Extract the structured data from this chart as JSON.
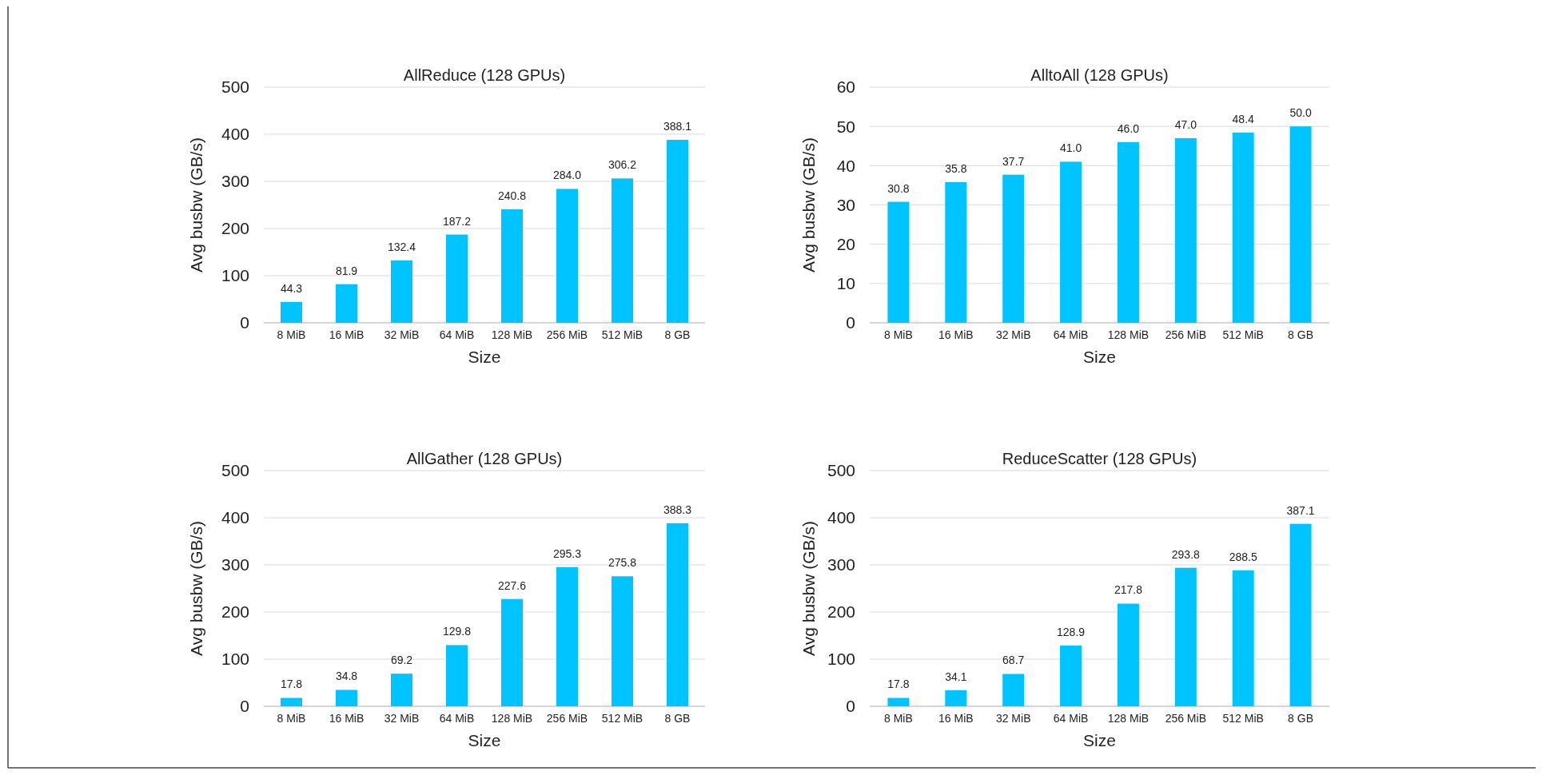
{
  "chart_data": [
    {
      "type": "bar",
      "title": "AllReduce (128 GPUs)",
      "xlabel": "Size",
      "ylabel": "Avg busbw (GB/s)",
      "categories": [
        "8 MiB",
        "16 MiB",
        "32 MiB",
        "64 MiB",
        "128 MiB",
        "256 MiB",
        "512 MiB",
        "8 GB"
      ],
      "values": [
        44.3,
        81.9,
        132.4,
        187.2,
        240.8,
        284.0,
        306.2,
        388.1
      ],
      "value_labels": [
        "44.3",
        "81.9",
        "132.4",
        "187.2",
        "240.8",
        "284.0",
        "306.2",
        "388.1"
      ],
      "color": "#00c4ff",
      "ylim": [
        0,
        500
      ],
      "yticks": [
        0,
        100,
        200,
        300,
        400,
        500
      ],
      "grid": "y"
    },
    {
      "type": "bar",
      "title": "AlltoAll (128 GPUs)",
      "xlabel": "Size",
      "ylabel": "Avg busbw (GB/s)",
      "categories": [
        "8 MiB",
        "16 MiB",
        "32 MiB",
        "64 MiB",
        "128 MiB",
        "256 MiB",
        "512 MiB",
        "8 GB"
      ],
      "values": [
        30.8,
        35.8,
        37.7,
        41.0,
        46.0,
        47.0,
        48.4,
        50.0
      ],
      "value_labels": [
        "30.8",
        "35.8",
        "37.7",
        "41.0",
        "46.0",
        "47.0",
        "48.4",
        "50.0"
      ],
      "color": "#00c4ff",
      "ylim": [
        0,
        60
      ],
      "yticks": [
        0,
        10,
        20,
        30,
        40,
        50,
        60
      ],
      "grid": "y"
    },
    {
      "type": "bar",
      "title": "AllGather (128 GPUs)",
      "xlabel": "Size",
      "ylabel": "Avg busbw (GB/s)",
      "categories": [
        "8 MiB",
        "16 MiB",
        "32 MiB",
        "64 MiB",
        "128 MiB",
        "256 MiB",
        "512 MiB",
        "8 GB"
      ],
      "values": [
        17.8,
        34.8,
        69.2,
        129.8,
        227.6,
        295.3,
        275.8,
        388.3
      ],
      "value_labels": [
        "17.8",
        "34.8",
        "69.2",
        "129.8",
        "227.6",
        "295.3",
        "275.8",
        "388.3"
      ],
      "color": "#00c4ff",
      "ylim": [
        0,
        500
      ],
      "yticks": [
        0,
        100,
        200,
        300,
        400,
        500
      ],
      "grid": "y"
    },
    {
      "type": "bar",
      "title": "ReduceScatter (128 GPUs)",
      "xlabel": "Size",
      "ylabel": "Avg busbw (GB/s)",
      "categories": [
        "8 MiB",
        "16 MiB",
        "32 MiB",
        "64 MiB",
        "128 MiB",
        "256 MiB",
        "512 MiB",
        "8 GB"
      ],
      "values": [
        17.8,
        34.1,
        68.7,
        128.9,
        217.8,
        293.8,
        288.5,
        387.1
      ],
      "value_labels": [
        "17.8",
        "34.1",
        "68.7",
        "128.9",
        "217.8",
        "293.8",
        "288.5",
        "387.1"
      ],
      "color": "#00c4ff",
      "ylim": [
        0,
        500
      ],
      "yticks": [
        0,
        100,
        200,
        300,
        400,
        500
      ],
      "grid": "y"
    }
  ]
}
